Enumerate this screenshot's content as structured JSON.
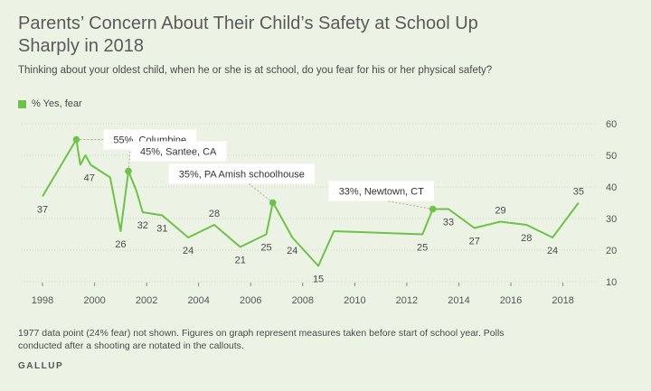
{
  "title": "Parents’ Concern About Their Child’s Safety at School Up Sharply in 2018",
  "subtitle": "Thinking about your oldest child, when he or she is at school, do you fear for his or her physical safety?",
  "legend_label": "% Yes, fear",
  "note": "1977 data point (24% fear) not shown. Figures on graph represent measures taken before start of school year. Polls conducted after a shooting are notated in the callouts.",
  "source": "GALLUP",
  "colors": {
    "line": "#6cc24a",
    "background": "#edf3e4",
    "grid": "#cfd6c6"
  },
  "chart_data": {
    "type": "line",
    "series": [
      {
        "name": "% Yes, fear",
        "points": [
          {
            "x": 1998.0,
            "y": 37,
            "label": "37"
          },
          {
            "x": 1999.3,
            "y": 55
          },
          {
            "x": 1999.45,
            "y": 47,
            "label": "47"
          },
          {
            "x": 1999.65,
            "y": 50
          },
          {
            "x": 1999.85,
            "y": 47
          },
          {
            "x": 2000.6,
            "y": 43
          },
          {
            "x": 2001.0,
            "y": 26,
            "label": "26"
          },
          {
            "x": 2001.3,
            "y": 45
          },
          {
            "x": 2001.6,
            "y": 39
          },
          {
            "x": 2001.85,
            "y": 32,
            "label": "32"
          },
          {
            "x": 2002.6,
            "y": 31,
            "label": "31"
          },
          {
            "x": 2003.6,
            "y": 24,
            "label": "24"
          },
          {
            "x": 2004.6,
            "y": 28,
            "label": "28"
          },
          {
            "x": 2005.6,
            "y": 21,
            "label": "21"
          },
          {
            "x": 2006.6,
            "y": 25,
            "label": "25"
          },
          {
            "x": 2006.85,
            "y": 35
          },
          {
            "x": 2007.0,
            "y": 33
          },
          {
            "x": 2007.6,
            "y": 24,
            "label": "24"
          },
          {
            "x": 2008.6,
            "y": 15,
            "label": "15"
          },
          {
            "x": 2009.2,
            "y": 26
          },
          {
            "x": 2012.6,
            "y": 25,
            "label": "25"
          },
          {
            "x": 2013.0,
            "y": 33
          },
          {
            "x": 2013.6,
            "y": 33,
            "label": "33"
          },
          {
            "x": 2014.6,
            "y": 27,
            "label": "27"
          },
          {
            "x": 2015.6,
            "y": 29,
            "label": "29"
          },
          {
            "x": 2016.6,
            "y": 28,
            "label": "28"
          },
          {
            "x": 2017.6,
            "y": 24,
            "label": "24"
          },
          {
            "x": 2018.6,
            "y": 35,
            "label": "35"
          }
        ]
      }
    ],
    "callouts": [
      {
        "x": 1999.3,
        "y": 55,
        "text": "55%, Columbine"
      },
      {
        "x": 2001.3,
        "y": 45,
        "text": "45%, Santee, CA"
      },
      {
        "x": 2006.85,
        "y": 35,
        "text": "35%, PA Amish schoolhouse"
      },
      {
        "x": 2013.0,
        "y": 33,
        "text": "33%, Newtown, CT"
      }
    ],
    "xticks": [
      1998,
      2000,
      2002,
      2004,
      2006,
      2008,
      2010,
      2012,
      2014,
      2016,
      2018
    ],
    "yticks": [
      10,
      20,
      30,
      40,
      50,
      60
    ],
    "xlim": [
      1997.2,
      2019.3
    ],
    "ylim": [
      10,
      60
    ],
    "grid": "horizontal dotted",
    "legend_position": "top-left"
  }
}
